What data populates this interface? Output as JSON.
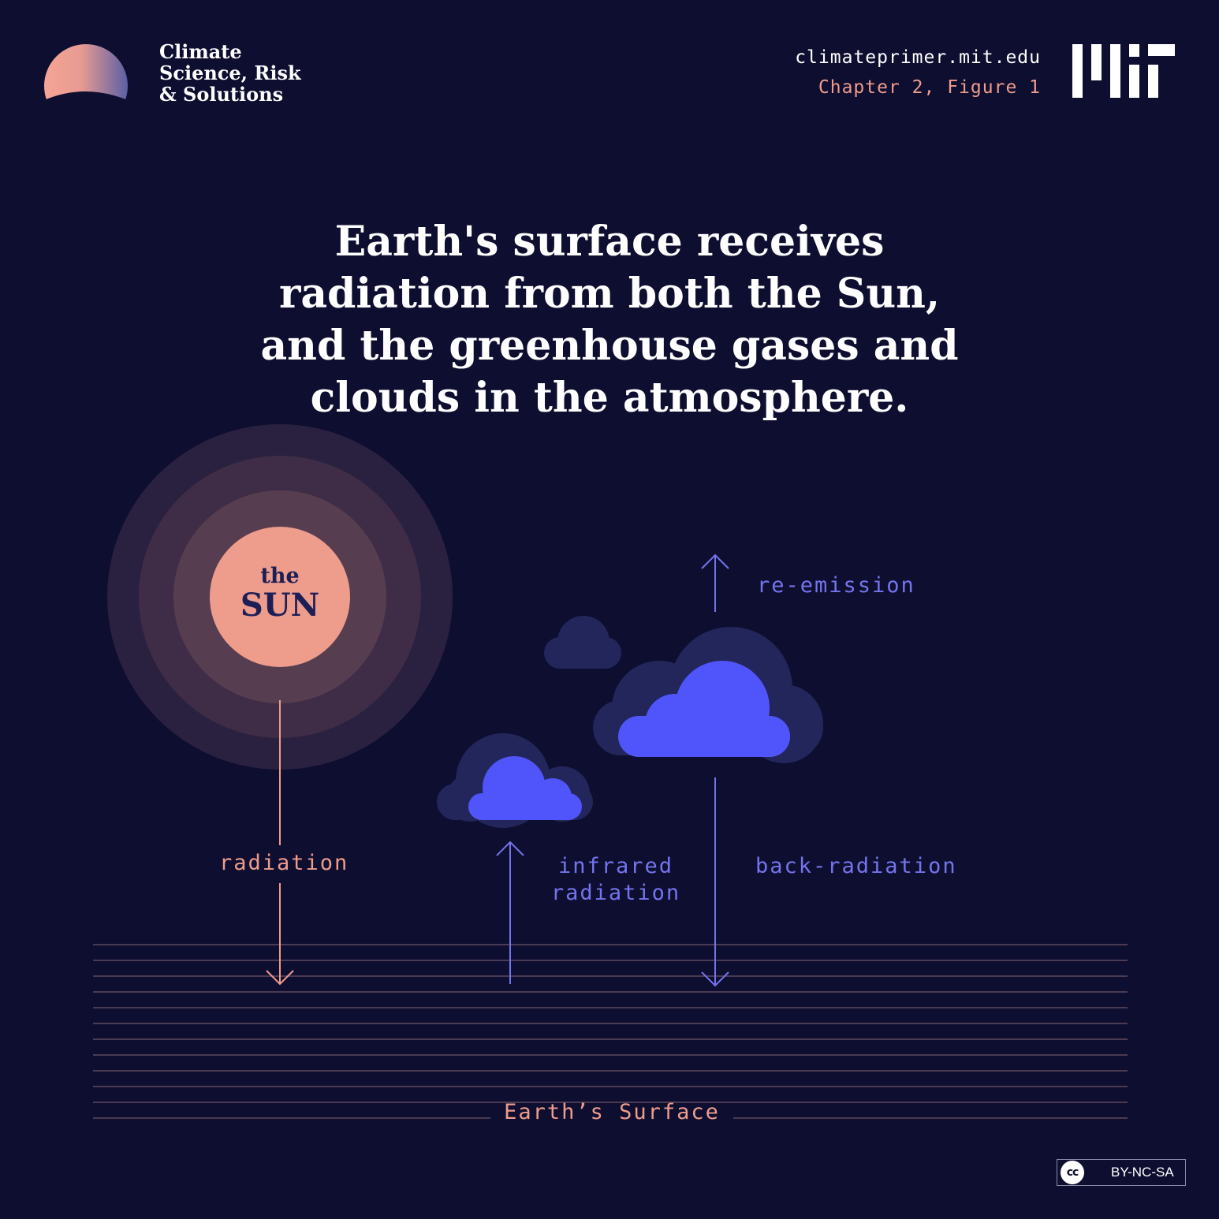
{
  "header": {
    "brand_lines": [
      "Climate",
      "Science, Risk",
      "& Solutions"
    ],
    "url": "climateprimer.mit.edu",
    "chapter": "Chapter 2, Figure 1",
    "logo_icon": "mit-logo-icon",
    "brand_icon": "half-sun-logo-icon"
  },
  "headline": {
    "lines": [
      "Earth's surface receives",
      "radiation from both the Sun,",
      "and the greenhouse gases and",
      "clouds in the atmosphere."
    ]
  },
  "sun": {
    "line1": "the",
    "line2": "SUN"
  },
  "labels": {
    "radiation": "radiation",
    "reemission": "re-emission",
    "infrared_1": "infrared",
    "infrared_2": "radiation",
    "back_radiation": "back-radiation",
    "surface": "Earth’s Surface"
  },
  "license": {
    "text": "BY-NC-SA",
    "badge": "cc"
  },
  "colors": {
    "background": "#0e0e30",
    "salmon": "#ee9c8c",
    "cloud_blue": "#5055fb",
    "cloud_dark": "#23265a",
    "label_blue": "#7474ee"
  }
}
